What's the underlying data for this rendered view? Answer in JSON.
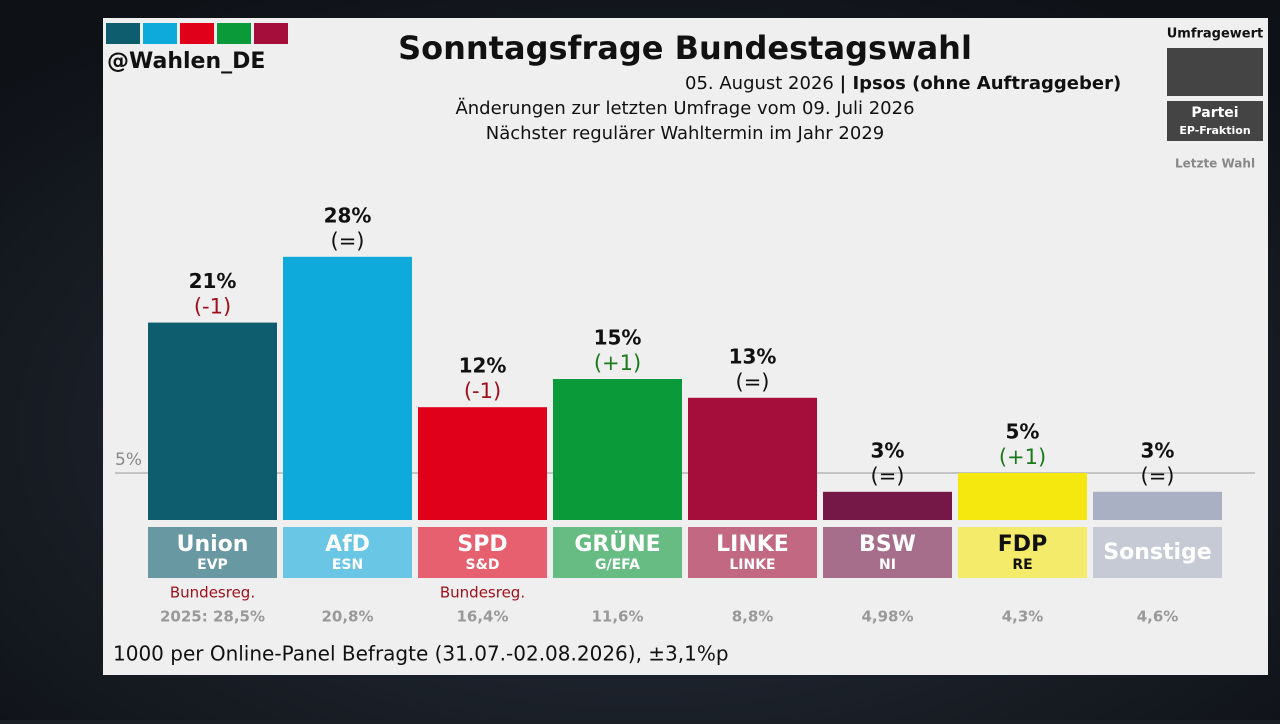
{
  "header": {
    "handle": "@Wahlen_DE",
    "handle_colors": [
      "#0d5d6e",
      "#0faadc",
      "#e0001a",
      "#0a9a3a",
      "#a50e3a"
    ]
  },
  "legend": {
    "value": "Umfragewert",
    "party": "Partei",
    "faction": "EP-Fraktion",
    "last": "Letzte Wahl"
  },
  "footer": "1000 per Online-Panel Befragte (31.07.-02.08.2026), ±3,1%p",
  "chart_data": {
    "type": "bar",
    "title": "Sonntagsfrage Bundestagswahl",
    "subtitle_date": "05. August 2026",
    "subtitle_source": "| Ipsos (ohne Auftraggeber)",
    "subtitle_change": "Änderungen zur letzten Umfrage vom 09. Juli 2026",
    "subtitle_next": "Nächster regulärer Wahltermin im Jahr 2029",
    "categories": [
      "Union",
      "AfD",
      "SPD",
      "GRÜNE",
      "LINKE",
      "BSW",
      "FDP",
      "Sonstige"
    ],
    "factions": [
      "EVP",
      "ESN",
      "S&D",
      "G/EFA",
      "LINKE",
      "NI",
      "RE",
      null
    ],
    "values": [
      21,
      28,
      12,
      15,
      13,
      3,
      5,
      3
    ],
    "value_labels": [
      "21%",
      "28%",
      "12%",
      "15%",
      "13%",
      "3%",
      "5%",
      "3%"
    ],
    "changes": [
      "(-1)",
      "(=)",
      "(-1)",
      "(+1)",
      "(=)",
      "(=)",
      "(+1)",
      "(=)"
    ],
    "change_colors": [
      "#a0101a",
      "#111111",
      "#a0101a",
      "#1a7a1a",
      "#111111",
      "#111111",
      "#1a7a1a",
      "#111111"
    ],
    "colors": [
      "#0d5d6e",
      "#0faadc",
      "#e0001a",
      "#0a9a3a",
      "#a50e3a",
      "#761847",
      "#f5e80f",
      "#a9b0c3"
    ],
    "label_text_colors": [
      "#ffffff",
      "#ffffff",
      "#ffffff",
      "#ffffff",
      "#ffffff",
      "#ffffff",
      "#111111",
      "#ffffff"
    ],
    "notes": [
      "Bundesreg.",
      null,
      "Bundesreg.",
      null,
      null,
      null,
      null,
      null
    ],
    "last_election": [
      28.5,
      20.8,
      16.4,
      11.6,
      8.8,
      4.98,
      4.3,
      4.6
    ],
    "last_election_labels": [
      "2025: 28,5%",
      "20,8%",
      "16,4%",
      "11,6%",
      "8,8%",
      "4,98%",
      "4,3%",
      "4,6%"
    ],
    "threshold": {
      "value": 5,
      "label": "5%"
    },
    "ylim": [
      0,
      30
    ]
  }
}
